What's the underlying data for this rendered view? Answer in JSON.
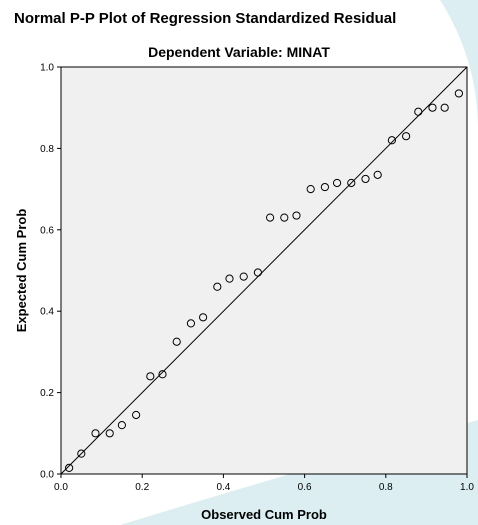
{
  "header": {
    "title": "Normal P-P Plot of Regression Standardized Residual",
    "subtitle": "Dependent Variable: MINAT"
  },
  "colors": {
    "plot_background": "#f0f0f0",
    "marker_stroke": "#000000",
    "reference_line": "#000000",
    "watermark": "#d8ecef"
  },
  "chart_data": {
    "type": "scatter",
    "title": "Normal P-P Plot of Regression Standardized Residual",
    "subtitle": "Dependent Variable: MINAT",
    "xlabel": "Observed Cum Prob",
    "ylabel": "Expected Cum Prob",
    "xlim": [
      0.0,
      1.0
    ],
    "ylim": [
      0.0,
      1.0
    ],
    "xticks": [
      "0.0",
      "0.2",
      "0.4",
      "0.6",
      "0.8",
      "1.0"
    ],
    "yticks": [
      "0.0",
      "0.2",
      "0.4",
      "0.6",
      "0.8",
      "1.0"
    ],
    "grid": false,
    "reference_line": {
      "from": [
        0,
        0
      ],
      "to": [
        1,
        1
      ]
    },
    "points": [
      {
        "x": 0.02,
        "y": 0.015
      },
      {
        "x": 0.05,
        "y": 0.05
      },
      {
        "x": 0.085,
        "y": 0.1
      },
      {
        "x": 0.12,
        "y": 0.1
      },
      {
        "x": 0.15,
        "y": 0.12
      },
      {
        "x": 0.185,
        "y": 0.145
      },
      {
        "x": 0.22,
        "y": 0.24
      },
      {
        "x": 0.25,
        "y": 0.245
      },
      {
        "x": 0.285,
        "y": 0.325
      },
      {
        "x": 0.32,
        "y": 0.37
      },
      {
        "x": 0.35,
        "y": 0.385
      },
      {
        "x": 0.385,
        "y": 0.46
      },
      {
        "x": 0.415,
        "y": 0.48
      },
      {
        "x": 0.45,
        "y": 0.485
      },
      {
        "x": 0.485,
        "y": 0.495
      },
      {
        "x": 0.515,
        "y": 0.63
      },
      {
        "x": 0.55,
        "y": 0.63
      },
      {
        "x": 0.58,
        "y": 0.635
      },
      {
        "x": 0.615,
        "y": 0.7
      },
      {
        "x": 0.65,
        "y": 0.705
      },
      {
        "x": 0.68,
        "y": 0.715
      },
      {
        "x": 0.715,
        "y": 0.715
      },
      {
        "x": 0.75,
        "y": 0.725
      },
      {
        "x": 0.78,
        "y": 0.735
      },
      {
        "x": 0.815,
        "y": 0.82
      },
      {
        "x": 0.85,
        "y": 0.83
      },
      {
        "x": 0.88,
        "y": 0.89
      },
      {
        "x": 0.915,
        "y": 0.9
      },
      {
        "x": 0.945,
        "y": 0.9
      },
      {
        "x": 0.98,
        "y": 0.935
      }
    ]
  }
}
